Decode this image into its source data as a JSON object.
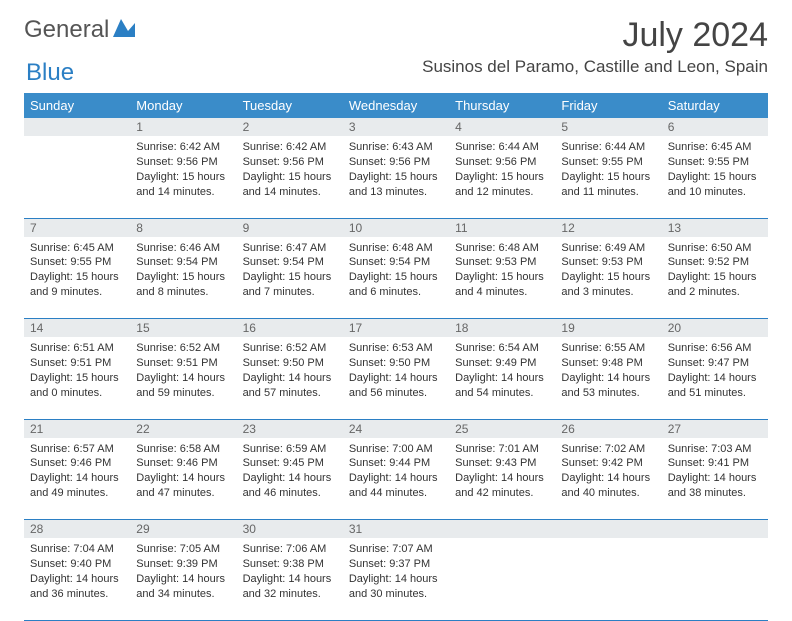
{
  "logo": {
    "part1": "General",
    "part2": "Blue"
  },
  "title": "July 2024",
  "location": "Susinos del Paramo, Castille and Leon, Spain",
  "headers": [
    "Sunday",
    "Monday",
    "Tuesday",
    "Wednesday",
    "Thursday",
    "Friday",
    "Saturday"
  ],
  "colors": {
    "header_bg": "#3a8cc9",
    "header_fg": "#ffffff",
    "dayrow_bg": "#e8ebed",
    "rule": "#2b7fc4"
  },
  "weeks": [
    [
      null,
      {
        "n": "1",
        "sunrise": "6:42 AM",
        "sunset": "9:56 PM",
        "daylight": "15 hours and 14 minutes."
      },
      {
        "n": "2",
        "sunrise": "6:42 AM",
        "sunset": "9:56 PM",
        "daylight": "15 hours and 14 minutes."
      },
      {
        "n": "3",
        "sunrise": "6:43 AM",
        "sunset": "9:56 PM",
        "daylight": "15 hours and 13 minutes."
      },
      {
        "n": "4",
        "sunrise": "6:44 AM",
        "sunset": "9:56 PM",
        "daylight": "15 hours and 12 minutes."
      },
      {
        "n": "5",
        "sunrise": "6:44 AM",
        "sunset": "9:55 PM",
        "daylight": "15 hours and 11 minutes."
      },
      {
        "n": "6",
        "sunrise": "6:45 AM",
        "sunset": "9:55 PM",
        "daylight": "15 hours and 10 minutes."
      }
    ],
    [
      {
        "n": "7",
        "sunrise": "6:45 AM",
        "sunset": "9:55 PM",
        "daylight": "15 hours and 9 minutes."
      },
      {
        "n": "8",
        "sunrise": "6:46 AM",
        "sunset": "9:54 PM",
        "daylight": "15 hours and 8 minutes."
      },
      {
        "n": "9",
        "sunrise": "6:47 AM",
        "sunset": "9:54 PM",
        "daylight": "15 hours and 7 minutes."
      },
      {
        "n": "10",
        "sunrise": "6:48 AM",
        "sunset": "9:54 PM",
        "daylight": "15 hours and 6 minutes."
      },
      {
        "n": "11",
        "sunrise": "6:48 AM",
        "sunset": "9:53 PM",
        "daylight": "15 hours and 4 minutes."
      },
      {
        "n": "12",
        "sunrise": "6:49 AM",
        "sunset": "9:53 PM",
        "daylight": "15 hours and 3 minutes."
      },
      {
        "n": "13",
        "sunrise": "6:50 AM",
        "sunset": "9:52 PM",
        "daylight": "15 hours and 2 minutes."
      }
    ],
    [
      {
        "n": "14",
        "sunrise": "6:51 AM",
        "sunset": "9:51 PM",
        "daylight": "15 hours and 0 minutes."
      },
      {
        "n": "15",
        "sunrise": "6:52 AM",
        "sunset": "9:51 PM",
        "daylight": "14 hours and 59 minutes."
      },
      {
        "n": "16",
        "sunrise": "6:52 AM",
        "sunset": "9:50 PM",
        "daylight": "14 hours and 57 minutes."
      },
      {
        "n": "17",
        "sunrise": "6:53 AM",
        "sunset": "9:50 PM",
        "daylight": "14 hours and 56 minutes."
      },
      {
        "n": "18",
        "sunrise": "6:54 AM",
        "sunset": "9:49 PM",
        "daylight": "14 hours and 54 minutes."
      },
      {
        "n": "19",
        "sunrise": "6:55 AM",
        "sunset": "9:48 PM",
        "daylight": "14 hours and 53 minutes."
      },
      {
        "n": "20",
        "sunrise": "6:56 AM",
        "sunset": "9:47 PM",
        "daylight": "14 hours and 51 minutes."
      }
    ],
    [
      {
        "n": "21",
        "sunrise": "6:57 AM",
        "sunset": "9:46 PM",
        "daylight": "14 hours and 49 minutes."
      },
      {
        "n": "22",
        "sunrise": "6:58 AM",
        "sunset": "9:46 PM",
        "daylight": "14 hours and 47 minutes."
      },
      {
        "n": "23",
        "sunrise": "6:59 AM",
        "sunset": "9:45 PM",
        "daylight": "14 hours and 46 minutes."
      },
      {
        "n": "24",
        "sunrise": "7:00 AM",
        "sunset": "9:44 PM",
        "daylight": "14 hours and 44 minutes."
      },
      {
        "n": "25",
        "sunrise": "7:01 AM",
        "sunset": "9:43 PM",
        "daylight": "14 hours and 42 minutes."
      },
      {
        "n": "26",
        "sunrise": "7:02 AM",
        "sunset": "9:42 PM",
        "daylight": "14 hours and 40 minutes."
      },
      {
        "n": "27",
        "sunrise": "7:03 AM",
        "sunset": "9:41 PM",
        "daylight": "14 hours and 38 minutes."
      }
    ],
    [
      {
        "n": "28",
        "sunrise": "7:04 AM",
        "sunset": "9:40 PM",
        "daylight": "14 hours and 36 minutes."
      },
      {
        "n": "29",
        "sunrise": "7:05 AM",
        "sunset": "9:39 PM",
        "daylight": "14 hours and 34 minutes."
      },
      {
        "n": "30",
        "sunrise": "7:06 AM",
        "sunset": "9:38 PM",
        "daylight": "14 hours and 32 minutes."
      },
      {
        "n": "31",
        "sunrise": "7:07 AM",
        "sunset": "9:37 PM",
        "daylight": "14 hours and 30 minutes."
      },
      null,
      null,
      null
    ]
  ],
  "labels": {
    "sunrise": "Sunrise:",
    "sunset": "Sunset:",
    "daylight": "Daylight:"
  }
}
